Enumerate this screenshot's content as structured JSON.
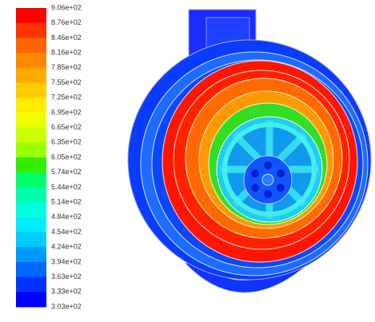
{
  "legend": {
    "labels": [
      "9.06e+02",
      "8.76e+02",
      "8.46e+02",
      "8.16e+02",
      "7.85e+02",
      "7.55e+02",
      "7.25e+02",
      "6.95e+02",
      "6.65e+02",
      "6.35e+02",
      "6.05e+02",
      "5.74e+02",
      "5.44e+02",
      "5.14e+02",
      "4.84e+02",
      "4.54e+02",
      "4.24e+02",
      "3.94e+02",
      "3.63e+02",
      "3.33e+02",
      "3.03e+02"
    ],
    "colors": [
      "#ff0000",
      "#ff3300",
      "#ff6600",
      "#ff8800",
      "#ffaa00",
      "#ffcc00",
      "#ffee00",
      "#eeff00",
      "#ccff00",
      "#99ff00",
      "#33ee00",
      "#00ff66",
      "#00ffaa",
      "#00ffdd",
      "#00eeff",
      "#00ccff",
      "#0099ff",
      "#0066ff",
      "#0033ff",
      "#0000ff"
    ]
  }
}
